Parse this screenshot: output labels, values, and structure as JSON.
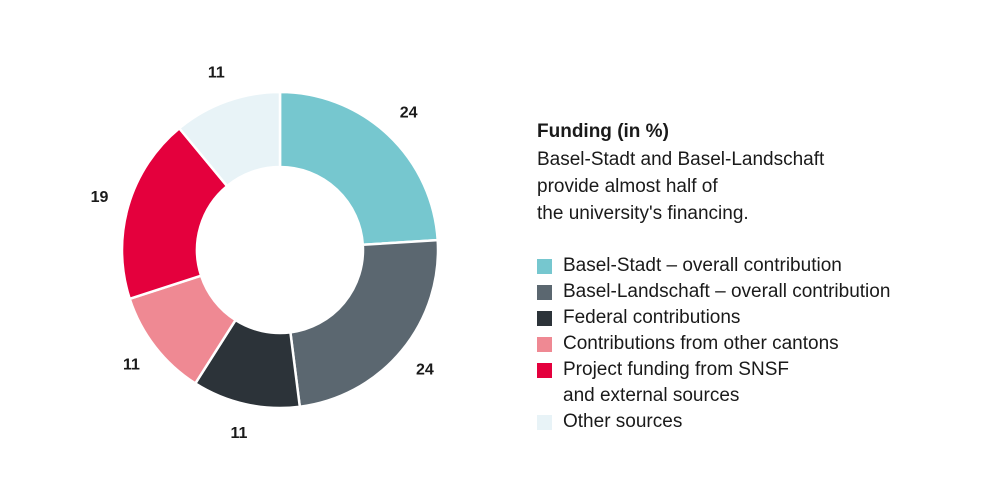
{
  "chart_data": {
    "type": "pie",
    "style": "donut",
    "title": "Funding (in %)",
    "subtitle": "Basel-Stadt and Basel-Landschaft\nprovide almost half of\nthe university's financing.",
    "categories": [
      "Basel-Stadt – overall contribution",
      "Basel-Landschaft – overall contribution",
      "Federal contributions",
      "Contributions from other cantons",
      "Project funding from SNSF\nand external sources",
      "Other sources"
    ],
    "values": [
      24,
      24,
      11,
      11,
      19,
      11
    ],
    "labels": [
      "24",
      "24",
      "11",
      "11",
      "19",
      "11"
    ],
    "colors": [
      "#76c7cf",
      "#5b6770",
      "#2c3339",
      "#ef8993",
      "#e4003d",
      "#e8f3f7"
    ],
    "legend_position": "right"
  }
}
